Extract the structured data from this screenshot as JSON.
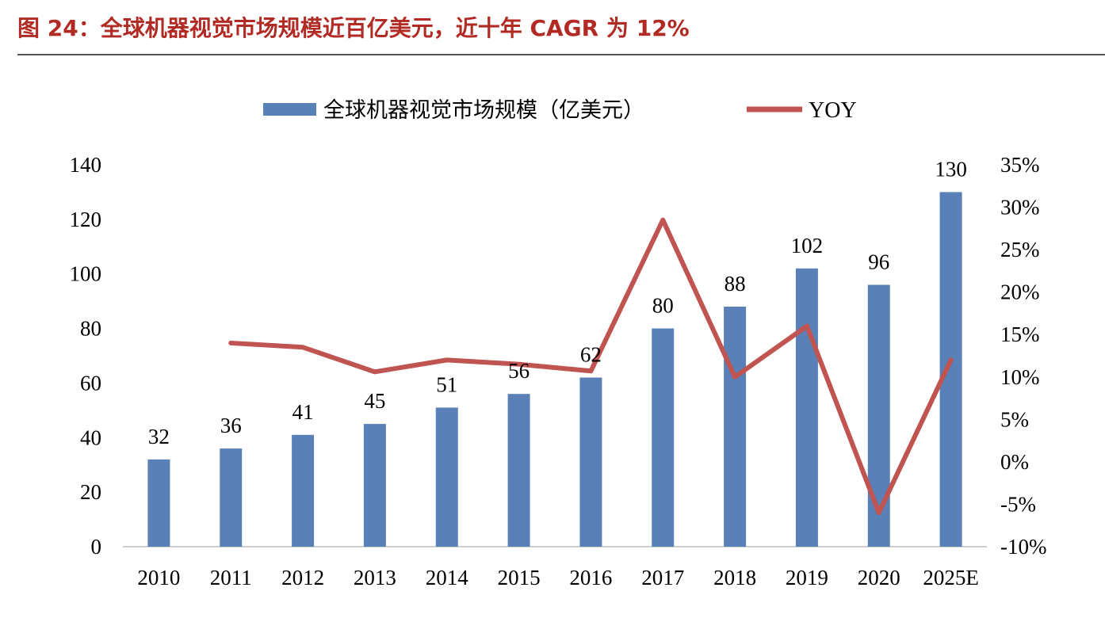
{
  "figure_title": "图 24：全球机器视觉市场规模近百亿美元，近十年 CAGR 为 12%",
  "colors": {
    "bar": "#5a80b8",
    "line": "#bf5451",
    "title": "#b22a24"
  },
  "chart_data": {
    "type": "bar",
    "title": "",
    "categories": [
      "2010",
      "2011",
      "2012",
      "2013",
      "2014",
      "2015",
      "2016",
      "2017",
      "2018",
      "2019",
      "2020",
      "2025E"
    ],
    "series": [
      {
        "name": "全球机器视觉市场规模（亿美元）",
        "type": "bar",
        "axis": "left",
        "values": [
          32,
          36,
          41,
          45,
          51,
          56,
          62,
          80,
          88,
          102,
          96,
          130
        ]
      },
      {
        "name": "YOY",
        "type": "line",
        "axis": "right",
        "values": [
          null,
          14,
          13.5,
          10.6,
          12,
          11.5,
          10.7,
          28.5,
          10,
          16,
          -6,
          12
        ]
      }
    ],
    "data_labels": [
      "32",
      "36",
      "41",
      "45",
      "51",
      "56",
      "62",
      "80",
      "88",
      "102",
      "96",
      "130"
    ],
    "y_left": {
      "min": 0,
      "max": 140,
      "step": 20,
      "ticks": [
        "0",
        "20",
        "40",
        "60",
        "80",
        "100",
        "120",
        "140"
      ]
    },
    "y_right": {
      "min": -10,
      "max": 35,
      "step": 5,
      "ticks": [
        "-10%",
        "-5%",
        "0%",
        "5%",
        "10%",
        "15%",
        "20%",
        "25%",
        "30%",
        "35%"
      ]
    },
    "grid": false,
    "legend_position": "top-center"
  }
}
